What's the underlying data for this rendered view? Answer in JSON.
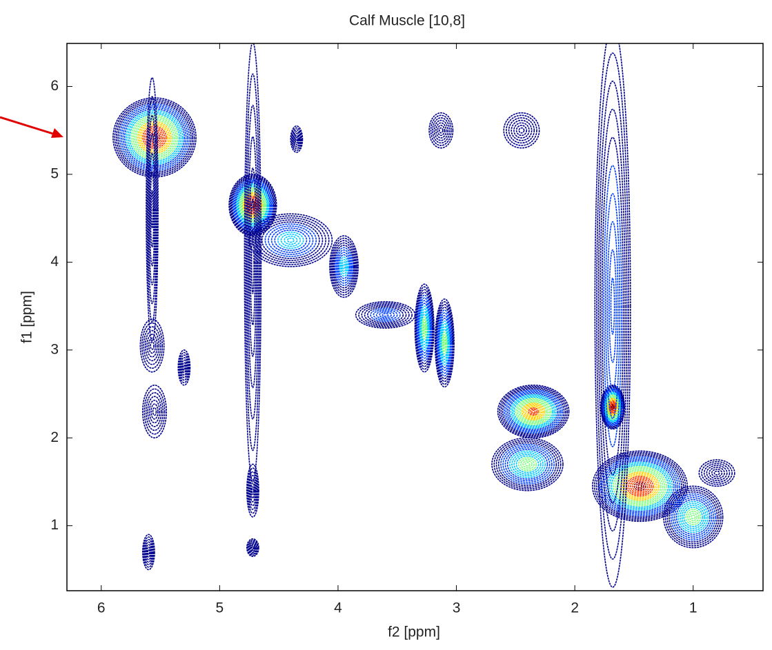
{
  "chart_data": {
    "type": "contour",
    "title": "Calf Muscle [10,8]",
    "x_label": "f2 [ppm]",
    "y_label": "f1 [ppm]",
    "xlim": [
      6.29,
      0.41
    ],
    "ylim": [
      0.26,
      6.49
    ],
    "xticks": [
      6,
      5,
      4,
      3,
      2,
      1
    ],
    "yticks": [
      1,
      2,
      3,
      4,
      5,
      6
    ],
    "colormap": [
      "#00008f",
      "#0040ff",
      "#00c8ff",
      "#80ff80",
      "#ffd000",
      "#ff4000",
      "#a00000"
    ],
    "peaks": {
      "x": [
        5.55,
        4.72,
        4.4,
        3.95,
        3.27,
        3.1,
        2.35,
        2.4,
        1.68,
        1.45,
        3.6,
        3.13,
        2.45,
        5.57,
        5.55,
        5.3,
        4.35,
        4.72,
        4.72,
        5.6,
        4.72,
        1.68,
        5.57,
        1.0,
        0.8
      ],
      "y": [
        5.42,
        4.65,
        4.25,
        3.95,
        3.25,
        3.08,
        2.3,
        1.7,
        2.35,
        1.45,
        3.4,
        5.5,
        5.5,
        3.05,
        2.3,
        2.8,
        5.4,
        1.4,
        0.75,
        0.7,
        4.0,
        3.5,
        4.6,
        1.1,
        1.6
      ],
      "width_x": [
        0.35,
        0.2,
        0.35,
        0.12,
        0.08,
        0.08,
        0.3,
        0.3,
        0.1,
        0.4,
        0.25,
        0.1,
        0.15,
        0.1,
        0.1,
        0.05,
        0.05,
        0.05,
        0.05,
        0.05,
        0.07,
        0.15,
        0.05,
        0.25,
        0.15
      ],
      "width_y": [
        0.45,
        0.35,
        0.3,
        0.35,
        0.5,
        0.5,
        0.3,
        0.3,
        0.25,
        0.4,
        0.15,
        0.2,
        0.2,
        0.3,
        0.3,
        0.2,
        0.15,
        0.3,
        0.1,
        0.2,
        2.5,
        3.2,
        1.5,
        0.35,
        0.15
      ],
      "level": [
        7,
        7,
        3,
        3,
        4,
        4,
        6,
        4,
        7,
        7,
        2,
        1,
        1,
        1,
        1,
        1,
        1,
        1,
        1,
        1,
        1,
        2,
        1,
        4,
        1
      ]
    }
  }
}
